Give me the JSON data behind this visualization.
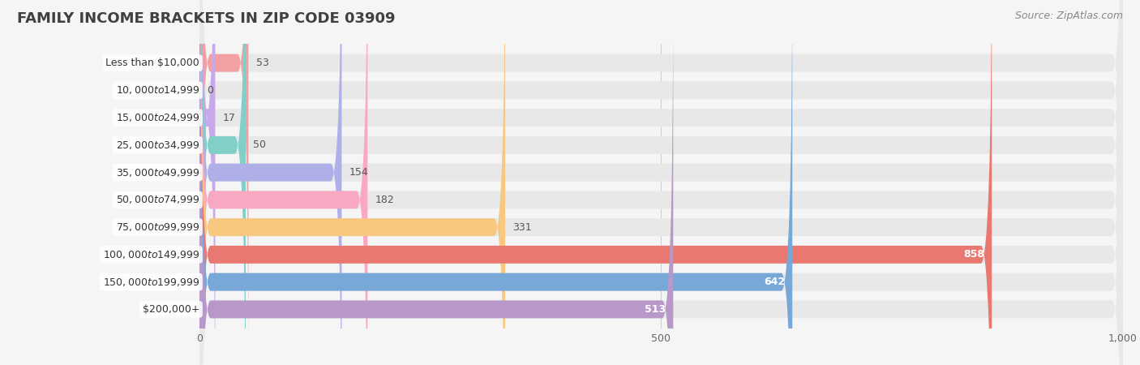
{
  "title": "FAMILY INCOME BRACKETS IN ZIP CODE 03909",
  "source": "Source: ZipAtlas.com",
  "categories": [
    "Less than $10,000",
    "$10,000 to $14,999",
    "$15,000 to $24,999",
    "$25,000 to $34,999",
    "$35,000 to $49,999",
    "$50,000 to $74,999",
    "$75,000 to $99,999",
    "$100,000 to $149,999",
    "$150,000 to $199,999",
    "$200,000+"
  ],
  "values": [
    53,
    0,
    17,
    50,
    154,
    182,
    331,
    858,
    642,
    513
  ],
  "bar_colors": [
    "#F2A0A2",
    "#A8C8F0",
    "#C8A8E8",
    "#80D0C8",
    "#B0B0E8",
    "#F8A8C0",
    "#F8C880",
    "#E87870",
    "#78A8D8",
    "#B898C8"
  ],
  "bg_color": "#F5F5F5",
  "bar_bg_color": "#E8E8E8",
  "xlim": [
    0,
    1000
  ],
  "xticks": [
    0,
    500,
    1000
  ],
  "title_fontsize": 13,
  "label_fontsize": 9.0,
  "value_fontsize": 9.0,
  "source_fontsize": 9,
  "bar_height": 0.65
}
